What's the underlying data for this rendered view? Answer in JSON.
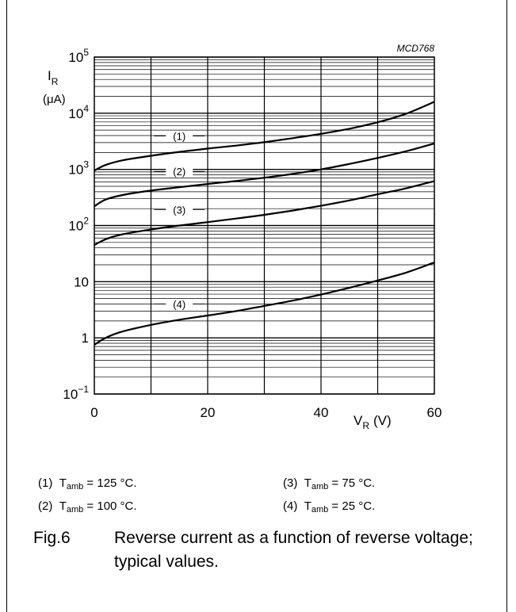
{
  "chart_data": {
    "type": "line",
    "code": "MCD768",
    "xlabel_main": "V",
    "xlabel_sub": "R",
    "xlabel_unit": "(V)",
    "ylabel_main": "I",
    "ylabel_sub": "R",
    "ylabel_unit": "(μA)",
    "xlim": [
      0,
      60
    ],
    "ylim": [
      0.1,
      100000
    ],
    "yscale": "log",
    "grid": true,
    "x_ticks": [
      "0",
      "20",
      "40",
      "60"
    ],
    "y_ticks": [
      {
        "base": "10",
        "exp": "−1",
        "value": 0.1
      },
      {
        "base": "1",
        "exp": "",
        "value": 1
      },
      {
        "base": "10",
        "exp": "",
        "value": 10
      },
      {
        "base": "10",
        "exp": "2",
        "value": 100
      },
      {
        "base": "10",
        "exp": "3",
        "value": 1000
      },
      {
        "base": "10",
        "exp": "4",
        "value": 10000
      },
      {
        "base": "10",
        "exp": "5",
        "value": 100000
      }
    ],
    "series": [
      {
        "name": "(1)",
        "label_x": 15,
        "x": [
          0,
          2,
          5,
          10,
          15,
          20,
          25,
          30,
          35,
          40,
          45,
          50,
          55,
          60
        ],
        "values": [
          950,
          1200,
          1450,
          1750,
          2050,
          2350,
          2650,
          3050,
          3600,
          4300,
          5300,
          6900,
          9800,
          16000
        ]
      },
      {
        "name": "(2)",
        "label_x": 15,
        "x": [
          0,
          2,
          5,
          10,
          15,
          20,
          25,
          30,
          35,
          40,
          45,
          50,
          55,
          60
        ],
        "values": [
          220,
          290,
          350,
          420,
          480,
          550,
          620,
          710,
          830,
          1000,
          1250,
          1600,
          2100,
          2900
        ]
      },
      {
        "name": "(3)",
        "label_x": 15,
        "x": [
          0,
          2,
          5,
          10,
          15,
          20,
          25,
          30,
          35,
          40,
          45,
          50,
          55,
          60
        ],
        "values": [
          45,
          57,
          70,
          85,
          100,
          115,
          133,
          155,
          185,
          225,
          280,
          360,
          460,
          620
        ]
      },
      {
        "name": "(4)",
        "label_x": 15,
        "x": [
          0,
          2,
          5,
          10,
          15,
          20,
          25,
          30,
          35,
          40,
          45,
          50,
          55,
          60
        ],
        "values": [
          0.75,
          1.0,
          1.3,
          1.7,
          2.1,
          2.5,
          3.0,
          3.7,
          4.6,
          5.9,
          7.8,
          10.5,
          14.5,
          22
        ]
      }
    ]
  },
  "legend": [
    {
      "num": "(1)",
      "sym": "T",
      "sub": "amb",
      "rest": " = 125 °C."
    },
    {
      "num": "(2)",
      "sym": "T",
      "sub": "amb",
      "rest": " = 100 °C."
    },
    {
      "num": "(3)",
      "sym": "T",
      "sub": "amb",
      "rest": " = 75 °C."
    },
    {
      "num": "(4)",
      "sym": "T",
      "sub": "amb",
      "rest": " = 25 °C."
    }
  ],
  "caption": {
    "number": "Fig.6",
    "text": "Reverse current as a function of reverse voltage; typical values."
  }
}
